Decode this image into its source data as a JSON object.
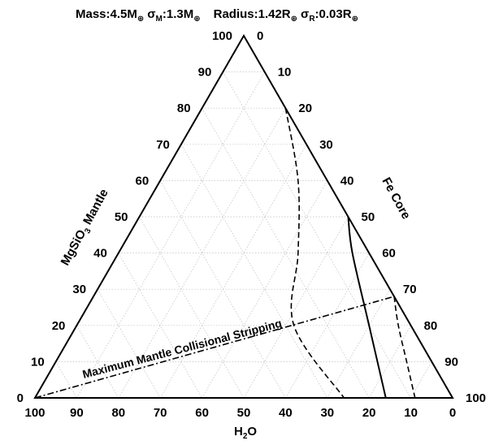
{
  "title": {
    "mass_label": "Mass:4.5M",
    "mass_sym": "⊕",
    "sigma_m_sym": "σ",
    "sigma_m_sub": "M",
    "sigma_m_val": ":1.3M",
    "sigma_m_unit_sym": "⊕",
    "radius_label": "Radius:1.42R",
    "radius_sym": "⊕",
    "sigma_r_sym": "σ",
    "sigma_r_sub": "R",
    "sigma_r_val": ":0.03R",
    "sigma_r_unit_sym": "⊕"
  },
  "chart_data": {
    "type": "ternary",
    "axes": {
      "left": {
        "label_main": "MgSiO",
        "label_sub": "3",
        "label_rest": " Mantle"
      },
      "right": {
        "label": "Fe Core"
      },
      "bottom": {
        "label_main": "H",
        "label_sub": "2",
        "label_rest": "O"
      }
    },
    "ticks": [
      0,
      10,
      20,
      30,
      40,
      50,
      60,
      70,
      80,
      90,
      100
    ],
    "tick_labels": {
      "left": [
        "0",
        "10",
        "20",
        "30",
        "40",
        "50",
        "60",
        "70",
        "80",
        "90",
        "100"
      ],
      "right": [
        "0",
        "10",
        "20",
        "30",
        "40",
        "50",
        "60",
        "70",
        "80",
        "90",
        "100"
      ],
      "bottom": [
        "100",
        "90",
        "80",
        "70",
        "60",
        "50",
        "40",
        "30",
        "20",
        "10",
        "0"
      ]
    },
    "grid": true,
    "annotation": "Maximum Mantle Collisional Stripping",
    "series": [
      {
        "style": "dashed",
        "points": [
          {
            "mantle": 80,
            "core": 20,
            "water": 0
          },
          {
            "mantle": 60,
            "core": 33,
            "water": 7
          },
          {
            "mantle": 40,
            "core": 43,
            "water": 17
          },
          {
            "mantle": 20,
            "core": 52,
            "water": 28
          },
          {
            "mantle": 0,
            "core": 74,
            "water": 26
          }
        ]
      },
      {
        "style": "solid",
        "points": [
          {
            "mantle": 50,
            "core": 50,
            "water": 0
          },
          {
            "mantle": 40,
            "core": 56,
            "water": 4
          },
          {
            "mantle": 20,
            "core": 70,
            "water": 10
          },
          {
            "mantle": 0,
            "core": 84,
            "water": 16
          }
        ]
      },
      {
        "style": "dashed",
        "points": [
          {
            "mantle": 28,
            "core": 72,
            "water": 0
          },
          {
            "mantle": 20,
            "core": 77,
            "water": 3
          },
          {
            "mantle": 10,
            "core": 84,
            "water": 6
          },
          {
            "mantle": 0,
            "core": 91,
            "water": 9
          }
        ]
      },
      {
        "style": "dashdot",
        "points": [
          {
            "mantle": 0,
            "core": 0,
            "water": 100
          },
          {
            "mantle": 28,
            "core": 72,
            "water": 0
          }
        ]
      }
    ]
  }
}
